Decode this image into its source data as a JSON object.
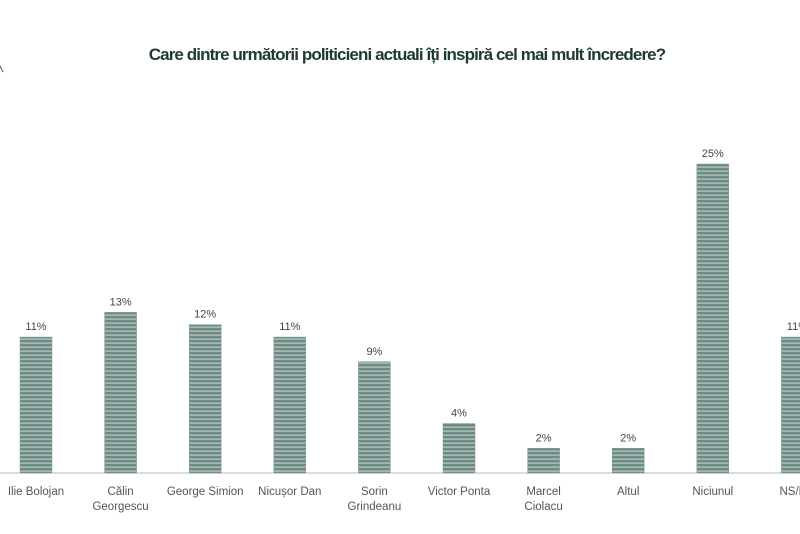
{
  "chart_data": {
    "type": "bar",
    "title": "Care dintre următorii politicieni actuali îți inspiră cel mai mult încredere?",
    "categories": [
      "Ilie Bolojan",
      "Călin Georgescu",
      "George Simion",
      "Nicușor Dan",
      "Sorin Grindeanu",
      "Victor Ponta",
      "Marcel Ciolacu",
      "Altul",
      "Niciunul",
      "NS/NR"
    ],
    "values": [
      11,
      13,
      12,
      11,
      9,
      4,
      2,
      2,
      25,
      11
    ],
    "value_suffix": "%",
    "ylim": [
      0,
      27
    ],
    "grid": false,
    "legend": "none",
    "colors": {
      "bar": "#6f8b85",
      "stripe": "#c9d6d2",
      "axis": "#c8c8c8",
      "title": "#1f3a2e",
      "label": "#555555"
    }
  }
}
